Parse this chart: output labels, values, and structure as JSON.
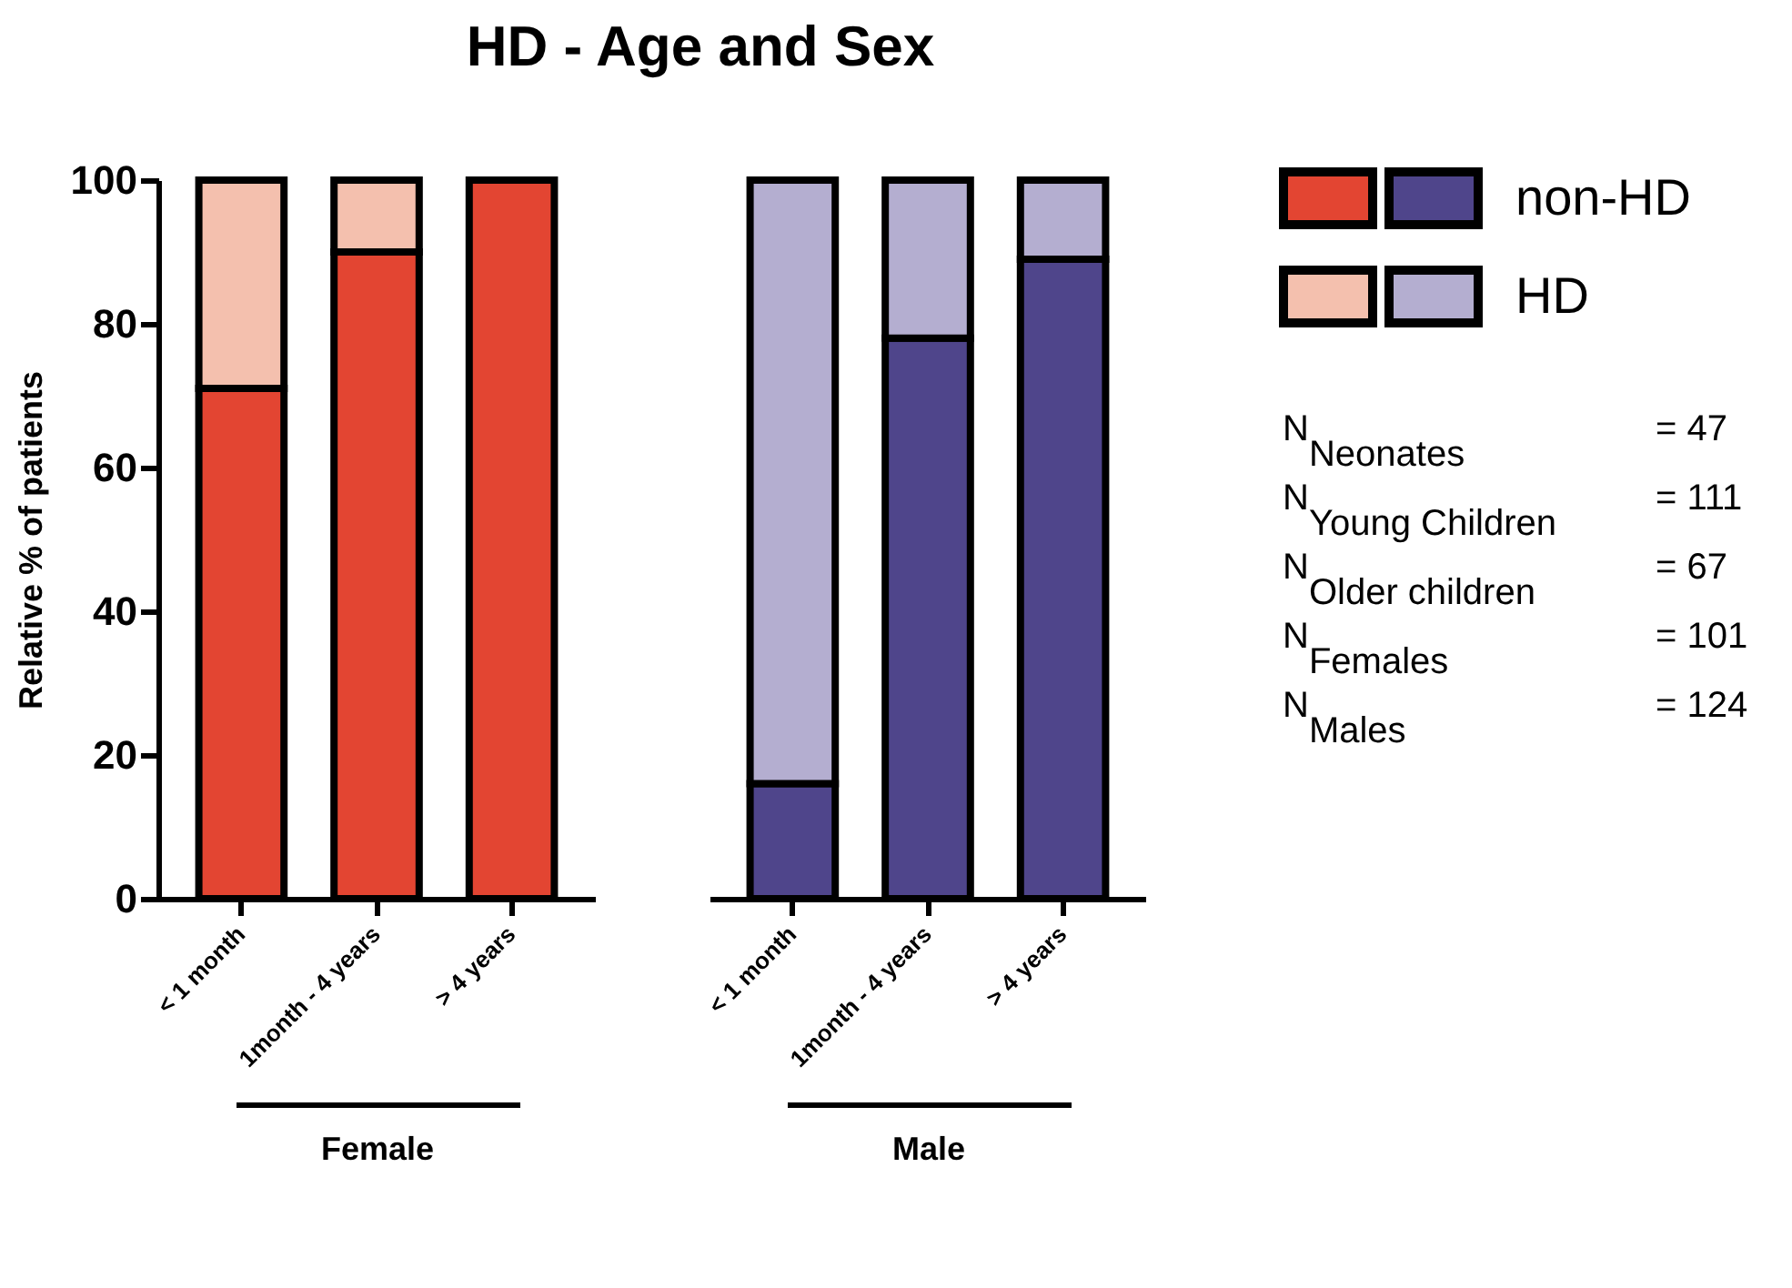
{
  "chart_data": [
    {
      "type": "bar",
      "title": "HD - Age and Sex",
      "xlabel": "Female",
      "ylabel": "Relative % of patients",
      "categories": [
        "< 1 month",
        "1month - 4 years",
        "> 4 years"
      ],
      "stacked": true,
      "ylim": [
        0,
        100
      ],
      "yticks": [
        0,
        20,
        40,
        60,
        80,
        100
      ],
      "series": [
        {
          "color": "#e34532",
          "values": [
            71,
            90,
            100
          ]
        },
        {
          "color": "#f4c0ae",
          "values": [
            29,
            10,
            0
          ]
        }
      ]
    },
    {
      "type": "bar",
      "xlabel": "Male",
      "categories": [
        "< 1 month",
        "1month - 4 years",
        "> 4 years"
      ],
      "stacked": true,
      "legend": "right",
      "ylim": [
        0,
        100
      ],
      "yticks": [
        0,
        20,
        40,
        60,
        80,
        100
      ],
      "tick_labels": "x",
      "annotations": [
        "N$_{Neonates}$ = 47",
        "N$_{Young Children}$ = 111",
        "N$_{Older children}$ = 67",
        "N$_{Females}$ = 101",
        "N$_{Males}$ = 124"
      ],
      "series": [
        {
          "name": "non-HD",
          "color": "#4f458b",
          "values": [
            16,
            78,
            89
          ]
        },
        {
          "name": "HD",
          "color": "#b4aed0",
          "values": [
            84,
            22,
            11
          ]
        }
      ]
    }
  ]
}
